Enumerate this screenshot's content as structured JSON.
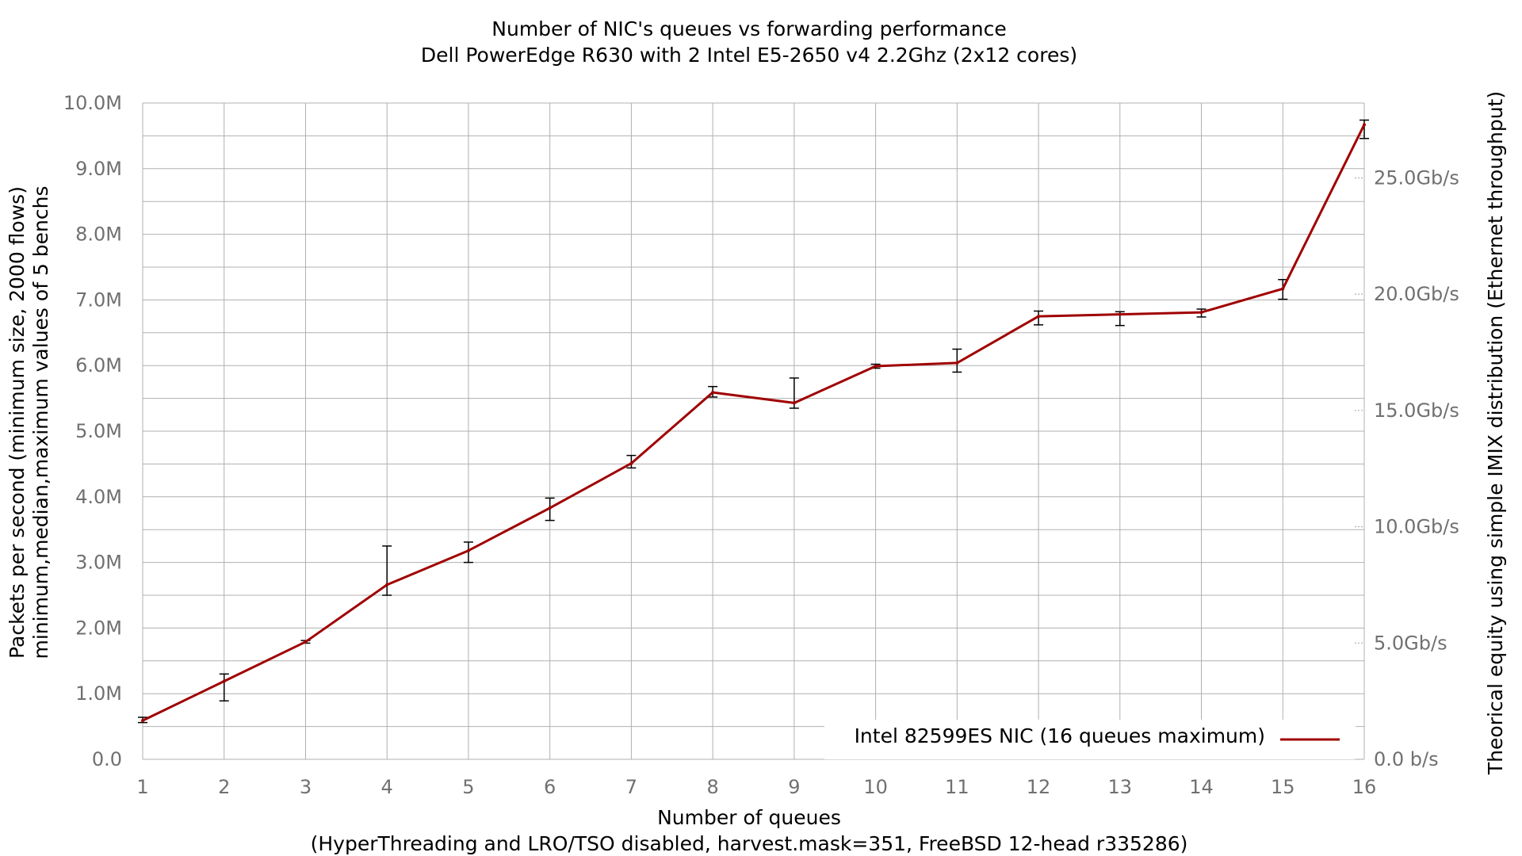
{
  "chart_data": {
    "type": "line",
    "title": "Number of NIC's queues vs forwarding performance",
    "subtitle": "Dell PowerEdge R630 with 2 Intel E5-2650 v4 2.2Ghz (2x12 cores)",
    "xlabel": "Number of queues",
    "xlabel_note": "(HyperThreading and LRO/TSO disabled, harvest.mask=351, FreeBSD 12-head r335286)",
    "ylabel_left_line1": "Packets per second (minimum size, 2000 flows)",
    "ylabel_left_line2": "minimum,median,maximum values of 5 benchs",
    "ylabel_right": "Theorical equity using simple IMIX distribution (Ethernet throughput)",
    "x_ticks": [
      "1",
      "2",
      "3",
      "4",
      "5",
      "6",
      "7",
      "8",
      "9",
      "10",
      "11",
      "12",
      "13",
      "14",
      "15",
      "16"
    ],
    "y_ticks_left": [
      "0.0",
      "1.0M",
      "2.0M",
      "3.0M",
      "4.0M",
      "5.0M",
      "6.0M",
      "7.0M",
      "8.0M",
      "9.0M",
      "10.0M"
    ],
    "y_ticks_right": [
      "0.0 b/s",
      "5.0Gb/s",
      "10.0Gb/s",
      "15.0Gb/s",
      "20.0Gb/s",
      "25.0Gb/s"
    ],
    "xlim": [
      1,
      16
    ],
    "ylim": [
      0,
      10000000
    ],
    "right_axis_gbps_per_mpps": 2.822,
    "grid": true,
    "legend_position": "bottom-right",
    "line_color": "#a00000",
    "series": [
      {
        "name": "Intel 82599ES NIC (16 queues maximum)",
        "x": [
          1,
          2,
          3,
          4,
          5,
          6,
          7,
          8,
          9,
          10,
          11,
          12,
          13,
          14,
          15,
          16
        ],
        "median": [
          590000,
          1190000,
          1790000,
          2660000,
          3180000,
          3830000,
          4510000,
          5590000,
          5430000,
          5990000,
          6040000,
          6750000,
          6780000,
          6810000,
          7170000,
          9670000
        ],
        "min": [
          560000,
          890000,
          1770000,
          2500000,
          3000000,
          3640000,
          4440000,
          5520000,
          5350000,
          5960000,
          5900000,
          6620000,
          6610000,
          6740000,
          7010000,
          9460000
        ],
        "max": [
          640000,
          1300000,
          1810000,
          3250000,
          3310000,
          3980000,
          4630000,
          5680000,
          5810000,
          6020000,
          6250000,
          6830000,
          6820000,
          6860000,
          7310000,
          9740000
        ]
      }
    ]
  }
}
